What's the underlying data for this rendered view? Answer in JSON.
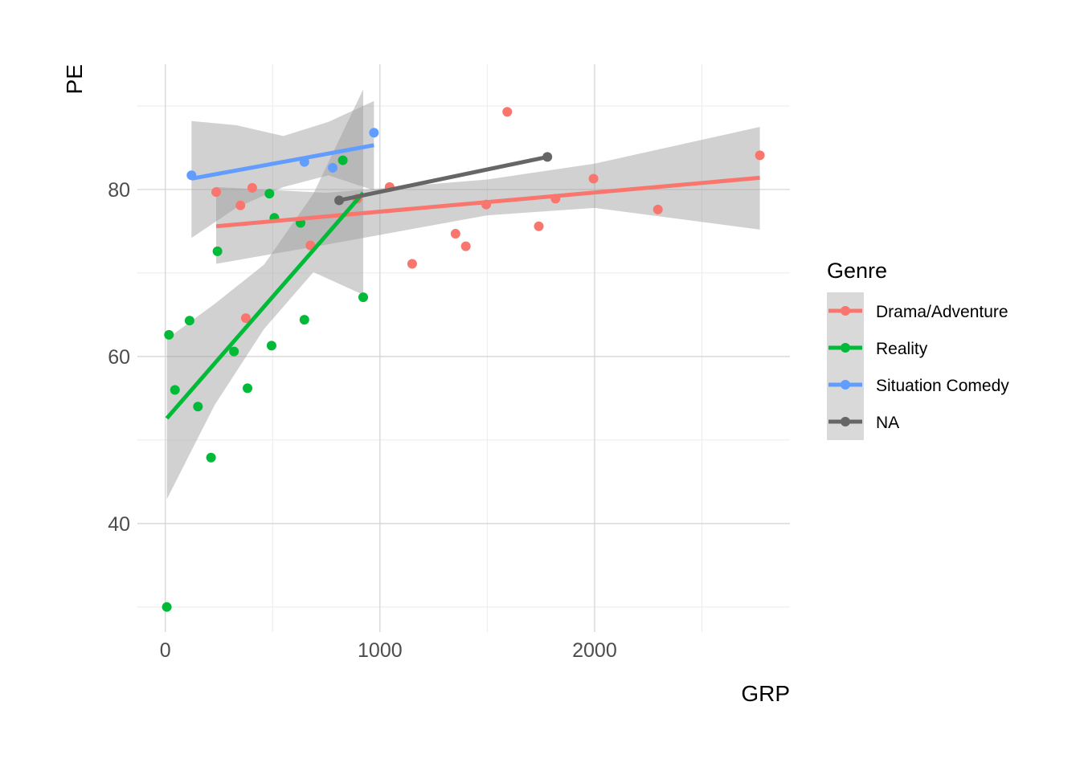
{
  "chart_data": {
    "type": "scatter",
    "title": "",
    "xlabel": "GRP",
    "ylabel": "PE",
    "xlim": [
      -130,
      2910
    ],
    "ylim": [
      27,
      95
    ],
    "x_ticks": [
      0,
      1000,
      2000
    ],
    "x_tick_labels": [
      "0",
      "1000",
      "2000"
    ],
    "x_minor_ticks": [
      500,
      1500,
      2500
    ],
    "y_ticks": [
      40,
      60,
      80
    ],
    "y_tick_labels": [
      "40",
      "60",
      "80"
    ],
    "y_minor_ticks": [
      30,
      50,
      70,
      90
    ],
    "grid": true,
    "legend": {
      "title": "Genre",
      "position": "right",
      "entries": [
        "Drama/Adventure",
        "Reality",
        "Situation Comedy",
        "NA"
      ]
    },
    "series": [
      {
        "name": "Drama/Adventure",
        "color": "#F8766D",
        "points": [
          [
            237,
            79.7
          ],
          [
            350,
            78.1
          ],
          [
            405,
            80.2
          ],
          [
            375,
            64.6
          ],
          [
            676,
            73.3
          ],
          [
            895,
            78.9
          ],
          [
            1045,
            80.3
          ],
          [
            1150,
            71.1
          ],
          [
            1352,
            74.7
          ],
          [
            1400,
            73.2
          ],
          [
            1495,
            78.2
          ],
          [
            1593,
            89.3
          ],
          [
            1740,
            75.6
          ],
          [
            1818,
            78.9
          ],
          [
            1995,
            81.3
          ],
          [
            2295,
            77.6
          ],
          [
            2770,
            84.1
          ]
        ],
        "trend": {
          "x": [
            237,
            2770
          ],
          "y": [
            75.6,
            81.4
          ]
        },
        "band": {
          "x": [
            237,
            750,
            1500,
            2000,
            2770
          ],
          "upper": [
            80.3,
            79.6,
            81.2,
            83.1,
            87.5
          ],
          "lower": [
            71.1,
            73.4,
            76.9,
            77.8,
            75.2
          ]
        }
      },
      {
        "name": "Reality",
        "color": "#00BA38",
        "points": [
          [
            7,
            30.0
          ],
          [
            17,
            62.6
          ],
          [
            45,
            56.0
          ],
          [
            113,
            64.3
          ],
          [
            152,
            54.0
          ],
          [
            213,
            47.9
          ],
          [
            243,
            72.6
          ],
          [
            320,
            60.6
          ],
          [
            383,
            56.2
          ],
          [
            485,
            79.5
          ],
          [
            495,
            61.3
          ],
          [
            508,
            76.6
          ],
          [
            630,
            76.0
          ],
          [
            648,
            64.4
          ],
          [
            827,
            83.5
          ],
          [
            922,
            67.1
          ]
        ],
        "trend": {
          "x": [
            7,
            922
          ],
          "y": [
            52.6,
            79.6
          ]
        },
        "band": {
          "x": [
            7,
            230,
            460,
            690,
            922
          ],
          "upper": [
            62.1,
            66.3,
            71.0,
            79.5,
            92.0
          ],
          "lower": [
            42.9,
            54.2,
            63.3,
            70.1,
            67.4
          ]
        }
      },
      {
        "name": "Situation Comedy",
        "color": "#619CFF",
        "points": [
          [
            122,
            81.7
          ],
          [
            648,
            83.3
          ],
          [
            780,
            82.6
          ],
          [
            972,
            86.8
          ]
        ],
        "trend": {
          "x": [
            122,
            972
          ],
          "y": [
            81.3,
            85.3
          ]
        },
        "band": {
          "x": [
            122,
            330,
            550,
            760,
            972
          ],
          "upper": [
            88.2,
            87.7,
            86.4,
            88.1,
            90.6
          ],
          "lower": [
            74.2,
            77.8,
            80.3,
            81.7,
            79.9
          ]
        }
      },
      {
        "name": "NA",
        "color": "#666666",
        "points": [
          [
            810,
            78.7
          ],
          [
            1780,
            83.9
          ]
        ],
        "trend": {
          "x": [
            810,
            1780
          ],
          "y": [
            78.7,
            83.9
          ]
        },
        "band": null
      }
    ]
  }
}
